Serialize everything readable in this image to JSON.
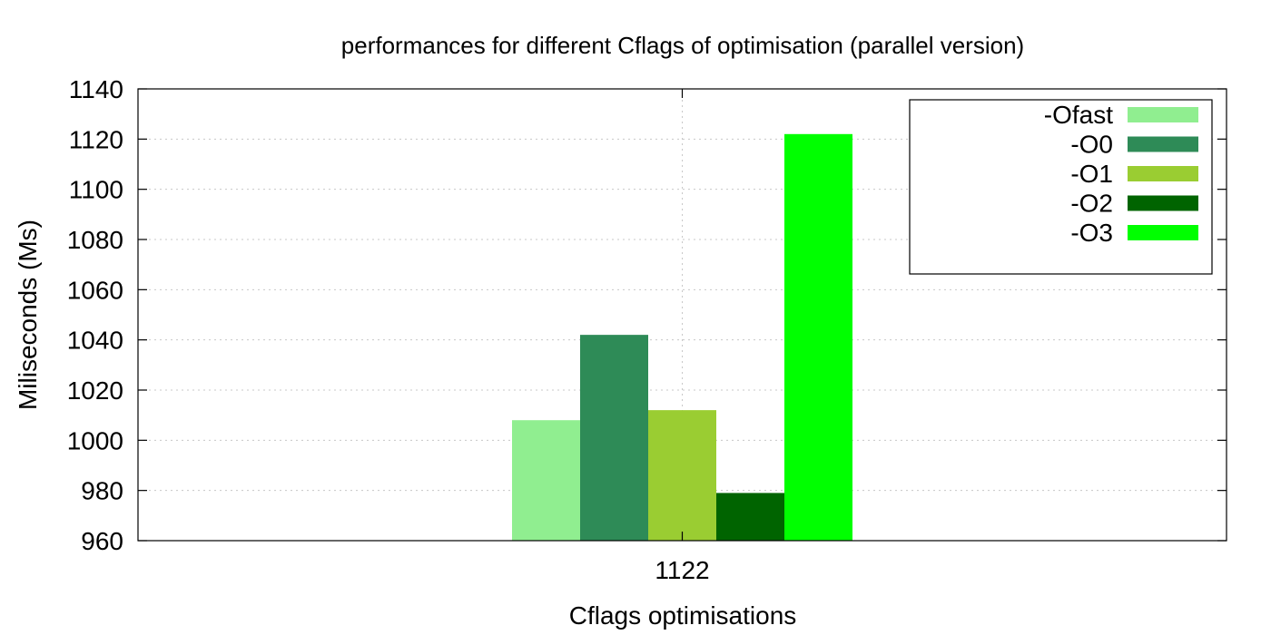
{
  "chart_data": {
    "type": "bar",
    "title": "performances for different Cflags of optimisation (parallel version)",
    "xlabel": "Cflags optimisations",
    "ylabel": "Miliseconds (Ms)",
    "categories": [
      "1122"
    ],
    "ylim": [
      960,
      1140
    ],
    "yticks": [
      960,
      980,
      1000,
      1020,
      1040,
      1060,
      1080,
      1100,
      1120,
      1140
    ],
    "grid": true,
    "legend_position": "top-right",
    "series": [
      {
        "name": "-Ofast",
        "values": [
          1008
        ],
        "color": "#90ee90"
      },
      {
        "name": "-O0",
        "values": [
          1042
        ],
        "color": "#2e8b57"
      },
      {
        "name": "-O1",
        "values": [
          1012
        ],
        "color": "#9acd32"
      },
      {
        "name": "-O2",
        "values": [
          979
        ],
        "color": "#006400"
      },
      {
        "name": "-O3",
        "values": [
          1122
        ],
        "color": "#00ff00"
      }
    ]
  }
}
